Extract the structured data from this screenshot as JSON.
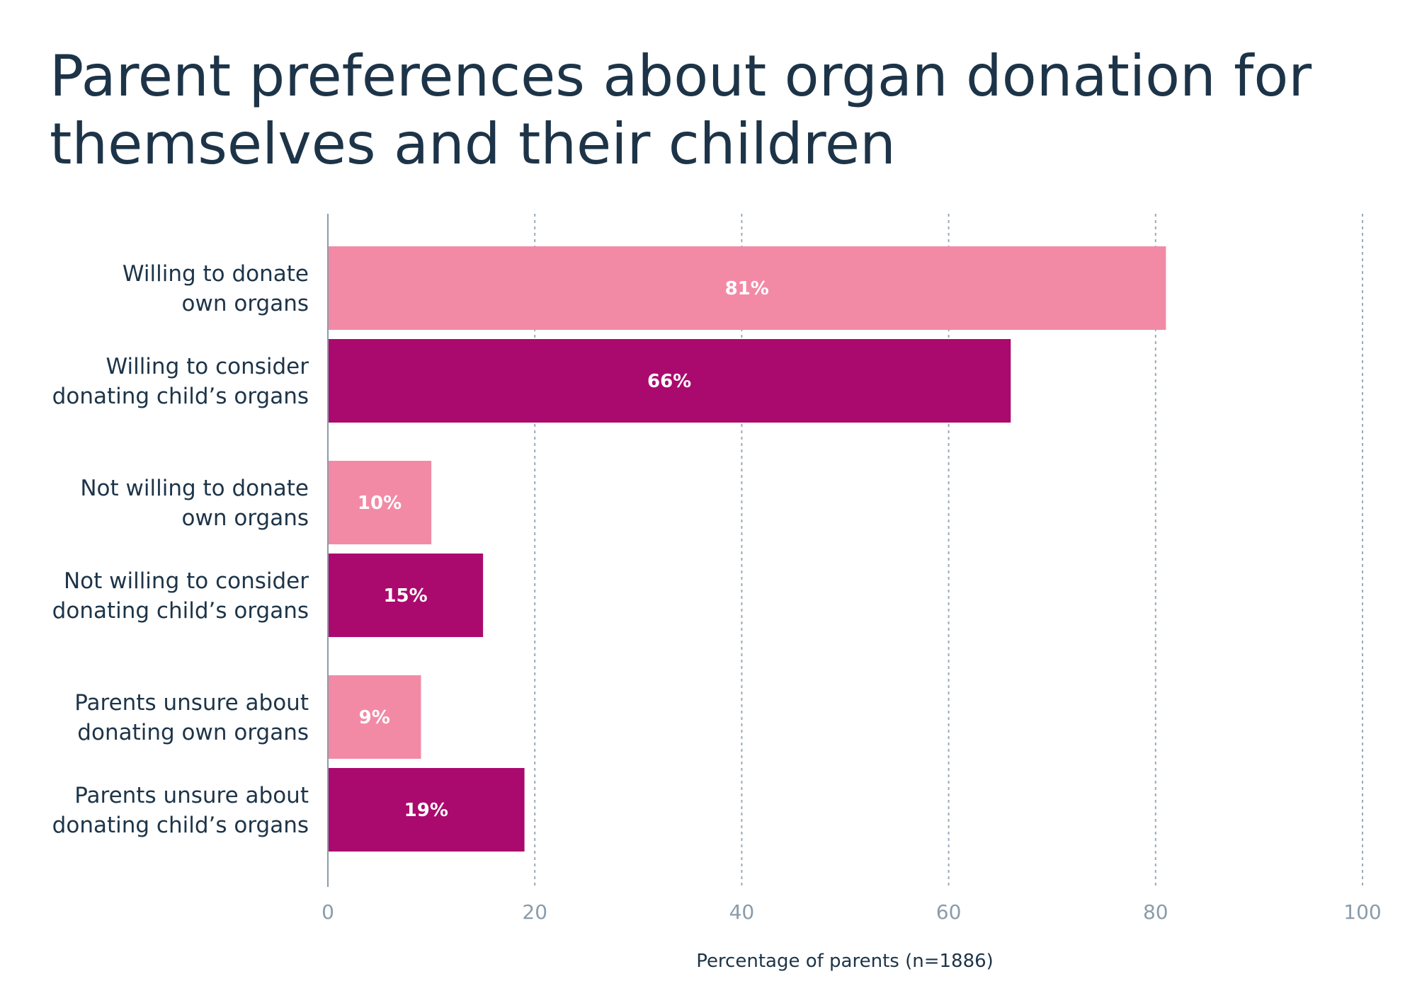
{
  "chart_data": {
    "type": "bar",
    "orientation": "horizontal",
    "title": "Parent preferences about organ donation for themselves and their children",
    "xlabel": "Percentage of parents (n=1886)",
    "ylabel": "",
    "xlim": [
      0,
      100
    ],
    "ticks": [
      0,
      20,
      40,
      60,
      80,
      100
    ],
    "tick_labels": [
      "0",
      "20",
      "40",
      "60",
      "80",
      "100"
    ],
    "grid": "vertical dotted",
    "bars": [
      {
        "label": [
          "Willing to donate",
          "own organs"
        ],
        "value": 81,
        "value_label": "81%",
        "color": "#f28aa6",
        "group": 1
      },
      {
        "label": [
          "Willing to consider",
          "donating child’s organs"
        ],
        "value": 66,
        "value_label": "66%",
        "color": "#aa0a6e",
        "group": 1
      },
      {
        "label": [
          "Not willing to donate",
          "own organs"
        ],
        "value": 10,
        "value_label": "10%",
        "color": "#f28aa6",
        "group": 2
      },
      {
        "label": [
          "Not willing to consider",
          "donating child’s organs"
        ],
        "value": 15,
        "value_label": "15%",
        "color": "#aa0a6e",
        "group": 2
      },
      {
        "label": [
          "Parents unsure about",
          "donating own organs"
        ],
        "value": 9,
        "value_label": "9%",
        "color": "#f28aa6",
        "group": 3
      },
      {
        "label": [
          "Parents unsure about",
          "donating child’s organs"
        ],
        "value": 19,
        "value_label": "19%",
        "color": "#aa0a6e",
        "group": 3
      }
    ]
  }
}
